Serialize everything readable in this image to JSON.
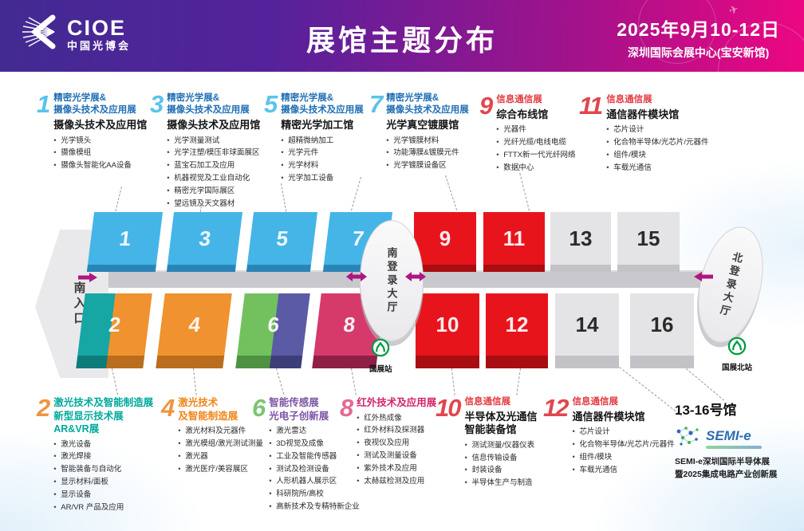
{
  "header": {
    "brand": "CIOE",
    "brand_cn": "中国光博会",
    "title": "展馆主题分布",
    "date": "2025年9月10-12日",
    "venue": "深圳国际会展中心(宝安新馆)"
  },
  "blocks": {
    "h1": {
      "num": "1",
      "title": "精密光学展&\n摄像头技术及应用展",
      "subtitle": "摄像头技术及应用馆",
      "items": [
        "光学镜头",
        "摄像模组",
        "摄像头智能化AA设备"
      ]
    },
    "h3": {
      "num": "3",
      "title": "精密光学展&\n摄像头技术及应用展",
      "subtitle": "摄像头技术及应用馆",
      "items": [
        "光学测量测试",
        "光学注塑/模压非球面展区",
        "蓝宝石加工及应用",
        "机器视觉及工业自动化",
        "精密光学国际展区",
        "望远镜及天文器材"
      ]
    },
    "h5": {
      "num": "5",
      "title": "精密光学展&\n摄像头技术及应用展",
      "subtitle": "精密光学加工馆",
      "items": [
        "超精微纳加工",
        "光学元件",
        "光学材料",
        "光学加工设备"
      ]
    },
    "h7": {
      "num": "7",
      "title": "精密光学展&\n摄像头技术及应用展",
      "subtitle": "光学真空镀膜馆",
      "items": [
        "光学镀膜材料",
        "功能薄膜&镀膜元件",
        "光学镀膜设备区"
      ]
    },
    "h9": {
      "num": "9",
      "title": "信息通信展",
      "subtitle": "综合布线馆",
      "items": [
        "光器件",
        "光纤光缆/电线电缆",
        "FTTX新一代光纤网络",
        "数据中心"
      ]
    },
    "h11": {
      "num": "11",
      "title": "信息通信展",
      "subtitle": "通信器件模块馆",
      "items": [
        "芯片设计",
        "化合物半导体/光芯片/元器件",
        "组件/模块",
        "车载光通信"
      ]
    },
    "h2": {
      "num": "2",
      "title": "激光技术及智能制造展\n新型显示技术展\nAR&VR展",
      "items": [
        "激光设备",
        "激光焊接",
        "智能装备与自动化",
        "显示材料/面板",
        "显示设备",
        "AR/VR 产品及应用"
      ]
    },
    "h4": {
      "num": "4",
      "title": "激光技术\n及智能制造展",
      "items": [
        "激光材料及元器件",
        "激光模组/激光测试测量",
        "激光器",
        "激光医疗/美容展区"
      ]
    },
    "h6": {
      "num": "6",
      "title": "智能传感展\n光电子创新展",
      "items": [
        "激光雷达",
        "3D视觉及成像",
        "工业及智能传感器",
        "测试及检测设备",
        "人形机器人展示区",
        "科研院所/高校",
        "高新技术及专精特新企业"
      ]
    },
    "h8": {
      "num": "8",
      "title": "红外技术及应用展",
      "items": [
        "红外热成像",
        "红外材料及探测器",
        "夜视仪及应用",
        "测试及测量设备",
        "紫外技术及应用",
        "太赫兹检测及应用"
      ]
    },
    "h10": {
      "num": "10",
      "title": "信息通信展",
      "subtitle": "半导体及光通信\n智能装备馆",
      "items": [
        "测试测量/仪器仪表",
        "信息传输设备",
        "封装设备",
        "半导体生产与制造"
      ]
    },
    "h12": {
      "num": "12",
      "title": "信息通信展",
      "subtitle": "通信器件模块馆",
      "items": [
        "芯片设计",
        "化合物半导体/光芯片/元器件",
        "组件/模块",
        "车载光通信"
      ]
    }
  },
  "hall13_16": {
    "title": "13-16号馆",
    "logo": "SEMI-e",
    "desc": "SEMI-e深圳国际半导体展\n暨2025集成电路产业创新展"
  },
  "map": {
    "south_entrance": "南入口",
    "south_lobby": "南登录大厅",
    "north_lobby": "北登录大厅",
    "metro_south": "国展站",
    "metro_north": "国展北站",
    "labels": {
      "h1": "1",
      "h2": "2",
      "h3": "3",
      "h4": "4",
      "h5": "5",
      "h6": "6",
      "h7": "7",
      "h8": "8",
      "h9": "9",
      "h10": "10",
      "h11": "11",
      "h12": "12",
      "h13": "13",
      "h14": "14",
      "h15": "15",
      "h16": "16"
    }
  },
  "colors": {
    "header_gradient_start": "#422a92",
    "header_gradient_end": "#ec0781",
    "blue_hall": "#45b5e8",
    "teal_hall": "#16a7a4",
    "orange_hall": "#f0922f",
    "green_hall": "#72c15e",
    "purple_hall": "#5a5aa5",
    "magenta_hall": "#d63a6b",
    "red_hall": "#e8141c",
    "gray_hall": "#e4e4e6",
    "blue_title": "#1f6eb5",
    "red_title": "#e23c42",
    "teal_title": "#00a99d",
    "orange_title": "#f08519",
    "purple_title": "#7d55a5",
    "magenta_title": "#d4246d",
    "arrow": "#ad1680",
    "metro_green": "#009a44"
  }
}
